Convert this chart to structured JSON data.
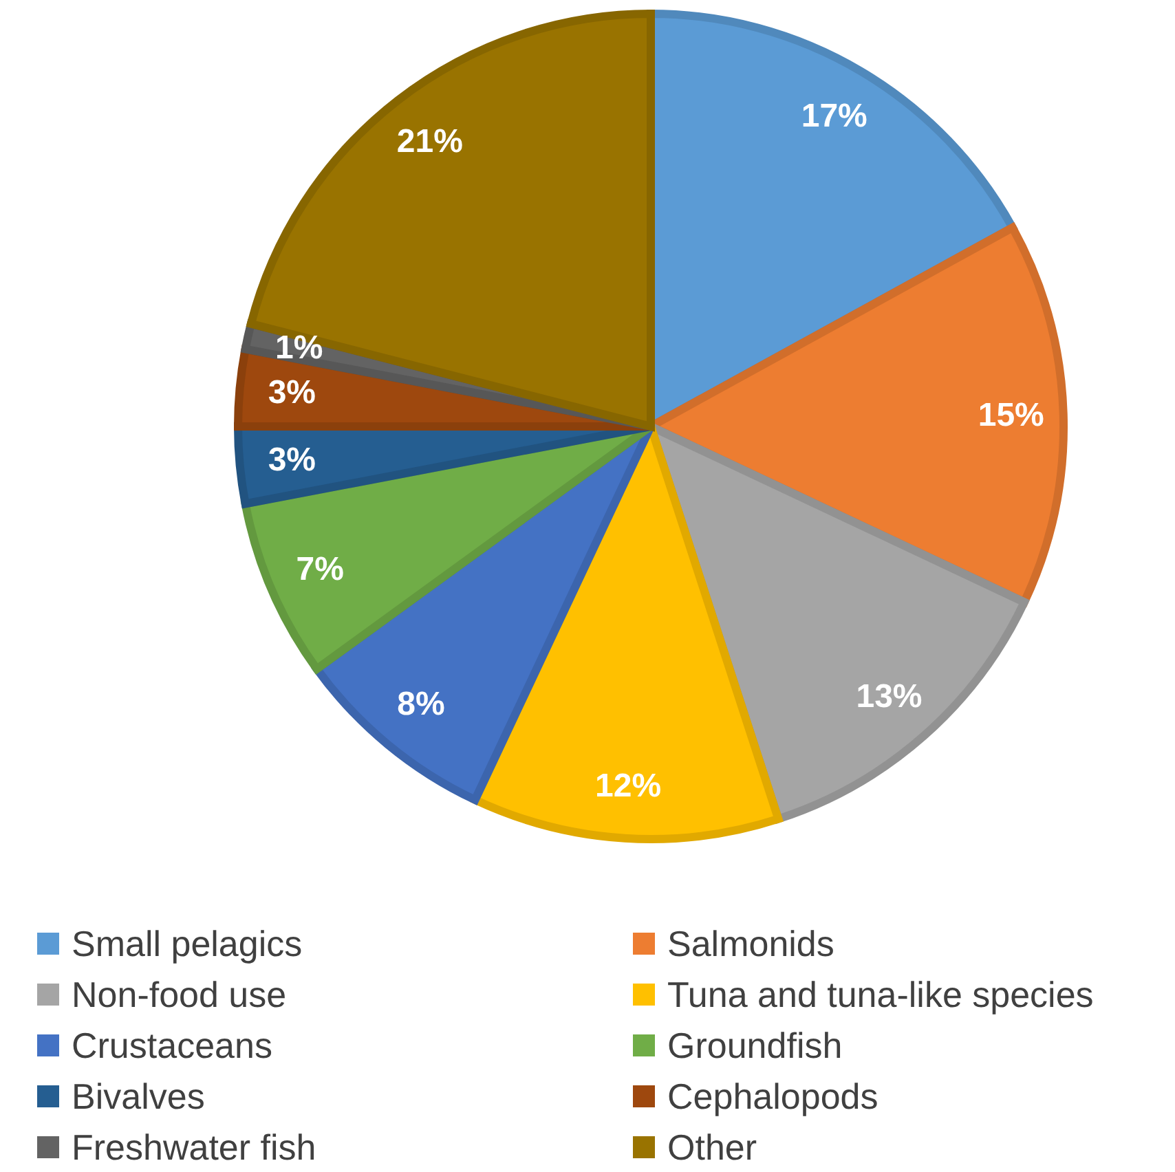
{
  "chart_data": {
    "type": "pie",
    "categories": [
      "Small pelagics",
      "Salmonids",
      "Non-food use",
      "Tuna and tuna-like species",
      "Crustaceans",
      "Groundfish",
      "Bivalves",
      "Cephalopods",
      "Freshwater fish",
      "Other"
    ],
    "values": [
      17,
      15,
      13,
      12,
      8,
      7,
      3,
      3,
      1,
      21
    ],
    "colors": [
      "#5b9bd5",
      "#ed7d31",
      "#a5a5a5",
      "#ffc000",
      "#4472c4",
      "#70ad47",
      "#255e91",
      "#9e480e",
      "#636363",
      "#997300"
    ],
    "value_labels": [
      "17%",
      "15%",
      "13%",
      "12%",
      "8%",
      "7%",
      "3%",
      "3%",
      "1%",
      "21%"
    ],
    "legend": "bottom"
  }
}
